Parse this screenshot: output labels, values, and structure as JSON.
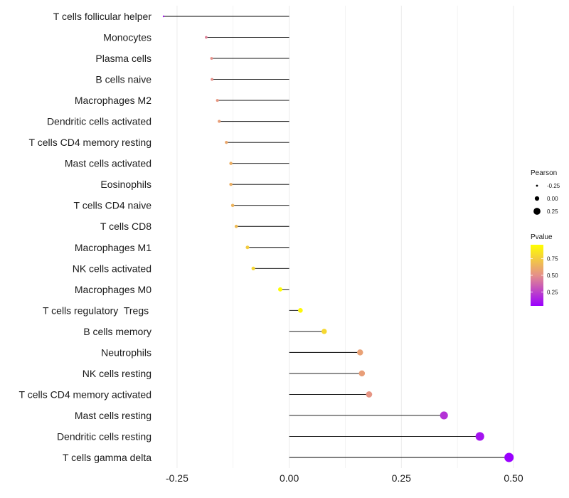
{
  "chart_data": {
    "type": "lollipop",
    "title": "",
    "xlabel": "",
    "ylabel": "",
    "xlim": [
      -0.28,
      0.5
    ],
    "x_ticks": [
      -0.25,
      0.0,
      0.25,
      0.5
    ],
    "x_tick_labels": [
      "-0.25",
      "0.00",
      "0.25",
      "0.50"
    ],
    "grid": "vertical",
    "points": [
      {
        "cell": "T cells follicular helper",
        "pearson": -0.28,
        "pvalue": 0.1
      },
      {
        "cell": "Monocytes",
        "pearson": -0.185,
        "pvalue": 0.45
      },
      {
        "cell": "Plasma cells",
        "pearson": -0.173,
        "pvalue": 0.5
      },
      {
        "cell": "B cells naive",
        "pearson": -0.172,
        "pvalue": 0.5
      },
      {
        "cell": "Macrophages M2",
        "pearson": -0.16,
        "pvalue": 0.53
      },
      {
        "cell": "Dendritic cells activated",
        "pearson": -0.156,
        "pvalue": 0.56
      },
      {
        "cell": "T cells CD4 memory resting",
        "pearson": -0.14,
        "pvalue": 0.6
      },
      {
        "cell": "Mast cells activated",
        "pearson": -0.13,
        "pvalue": 0.63
      },
      {
        "cell": "Eosinophils",
        "pearson": -0.13,
        "pvalue": 0.63
      },
      {
        "cell": "T cells CD4 naive",
        "pearson": -0.126,
        "pvalue": 0.65
      },
      {
        "cell": "T cells CD8",
        "pearson": -0.118,
        "pvalue": 0.68
      },
      {
        "cell": "Macrophages M1",
        "pearson": -0.093,
        "pvalue": 0.75
      },
      {
        "cell": "NK cells activated",
        "pearson": -0.08,
        "pvalue": 0.79
      },
      {
        "cell": "Macrophages M0",
        "pearson": -0.02,
        "pvalue": 0.95
      },
      {
        "cell": "T cells regulatory  Tregs ",
        "pearson": 0.025,
        "pvalue": 0.93
      },
      {
        "cell": "B cells memory",
        "pearson": 0.078,
        "pvalue": 0.8
      },
      {
        "cell": "Neutrophils",
        "pearson": 0.158,
        "pvalue": 0.57
      },
      {
        "cell": "NK cells resting",
        "pearson": 0.162,
        "pvalue": 0.56
      },
      {
        "cell": "T cells CD4 memory activated",
        "pearson": 0.178,
        "pvalue": 0.52
      },
      {
        "cell": "Mast cells resting",
        "pearson": 0.345,
        "pvalue": 0.2
      },
      {
        "cell": "Dendritic cells resting",
        "pearson": 0.425,
        "pvalue": 0.1
      },
      {
        "cell": "T cells gamma delta",
        "pearson": 0.49,
        "pvalue": 0.04
      }
    ],
    "legend": {
      "size_title": "Pearson",
      "size_values": [
        -0.25,
        0.0,
        0.25
      ],
      "size_labels": [
        "-0.25",
        "0.00",
        "0.25"
      ],
      "color_title": "Pvalue",
      "color_values": [
        0.75,
        0.5,
        0.25
      ],
      "color_labels": [
        "0.75",
        "0.50",
        "0.25"
      ],
      "color_range": [
        0.04,
        0.96
      ],
      "color_low": "#9a00ff",
      "color_mid": "#e5908a",
      "color_high": "#ffff00",
      "placement": "right"
    },
    "stem_color": "#000000",
    "grid_color": "#ebebeb"
  }
}
